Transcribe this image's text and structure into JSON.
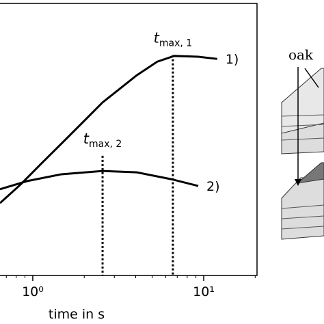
{
  "chart_data": {
    "type": "line",
    "xlabel": "time in s",
    "xscale": "log",
    "xlim": [
      0.643,
      20.5
    ],
    "ylim": [
      0,
      1
    ],
    "xticks": [
      {
        "value": 1,
        "label": "10⁰"
      },
      {
        "value": 10,
        "label": "10¹"
      }
    ],
    "xminorticks": [
      0.7,
      0.8,
      0.9,
      2,
      3,
      4,
      5,
      6,
      7,
      8,
      9,
      20
    ],
    "series": [
      {
        "name": "1)",
        "color": "#000000",
        "x": [
          0.643,
          0.847,
          1.117,
          1.614,
          2.56,
          4.06,
          5.35,
          6.73,
          9.29,
          12.0
        ],
        "values": [
          0.266,
          0.334,
          0.41,
          0.51,
          0.636,
          0.736,
          0.786,
          0.807,
          0.804,
          0.796
        ]
      },
      {
        "name": "2)",
        "color": "#000000",
        "x": [
          0.643,
          0.929,
          1.47,
          2.56,
          4.06,
          6.45,
          9.29
        ],
        "values": [
          0.317,
          0.347,
          0.372,
          0.384,
          0.379,
          0.354,
          0.329
        ]
      }
    ],
    "markers": [
      {
        "text": "t",
        "subscript": "max, 1",
        "x": 6.6,
        "y": 0.81
      },
      {
        "text": "t",
        "subscript": "max, 2",
        "x": 2.56,
        "y": 0.44
      }
    ]
  },
  "diagram": {
    "label": "oak"
  }
}
